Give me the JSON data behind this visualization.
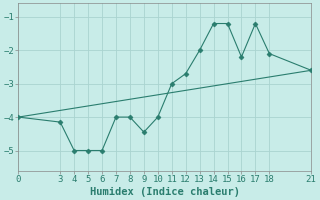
{
  "x": [
    0,
    3,
    4,
    5,
    6,
    7,
    8,
    9,
    10,
    11,
    12,
    13,
    14,
    15,
    16,
    17,
    18,
    21
  ],
  "y": [
    -4.0,
    -4.15,
    -5.0,
    -5.0,
    -5.0,
    -4.0,
    -4.0,
    -4.45,
    -4.0,
    -3.0,
    -2.7,
    -2.0,
    -1.2,
    -1.2,
    -2.2,
    -1.2,
    -2.1,
    -2.6
  ],
  "trend_x": [
    0,
    21
  ],
  "trend_y": [
    -4.0,
    -2.6
  ],
  "line_color": "#2a7d6e",
  "marker": "D",
  "marker_size": 2.5,
  "bg_color": "#c8ece8",
  "grid_color": "#aad4d0",
  "xlabel": "Humidex (Indice chaleur)",
  "xlim": [
    0,
    21
  ],
  "ylim": [
    -5.6,
    -0.6
  ],
  "xticks": [
    0,
    3,
    4,
    5,
    6,
    7,
    8,
    9,
    10,
    11,
    12,
    13,
    14,
    15,
    16,
    17,
    18,
    21
  ],
  "yticks": [
    -5,
    -4,
    -3,
    -2,
    -1
  ],
  "tick_fontsize": 6.5,
  "xlabel_fontsize": 7.5
}
